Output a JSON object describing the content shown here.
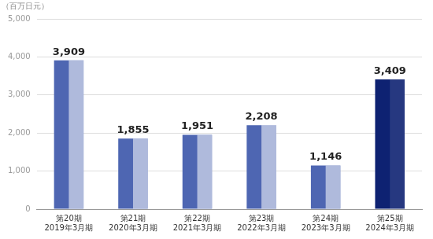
{
  "chart_data": {
    "type": "bar",
    "y_label": "（百万日元）",
    "categories": [
      [
        "第20期",
        "2019年3月期"
      ],
      [
        "第21期",
        "2020年3月期"
      ],
      [
        "第22期",
        "2021年3月期"
      ],
      [
        "第23期",
        "2022年3月期"
      ],
      [
        "第24期",
        "2023年3月期"
      ],
      [
        "第25期",
        "2024年3月期"
      ]
    ],
    "values": [
      3909,
      1855,
      1951,
      2208,
      1146,
      3409
    ],
    "value_labels": [
      "3,909",
      "1,855",
      "1,951",
      "2,208",
      "1,146",
      "3,409"
    ],
    "colors": [
      "#4e66b2",
      "#4e66b2",
      "#4e66b2",
      "#4e66b2",
      "#4e66b2",
      "#0e2272"
    ],
    "ylim": [
      0,
      5000
    ],
    "yticks": [
      0,
      {
        "value": 1000,
        "label": "1,000"
      },
      {
        "value": 2000,
        "label": "2,000"
      },
      {
        "value": 3000,
        "label": "3,000"
      },
      {
        "value": 4000,
        "label": "4,000"
      },
      {
        "value": 5000,
        "label": "5,000"
      }
    ],
    "grid": true,
    "data_labels": true
  }
}
